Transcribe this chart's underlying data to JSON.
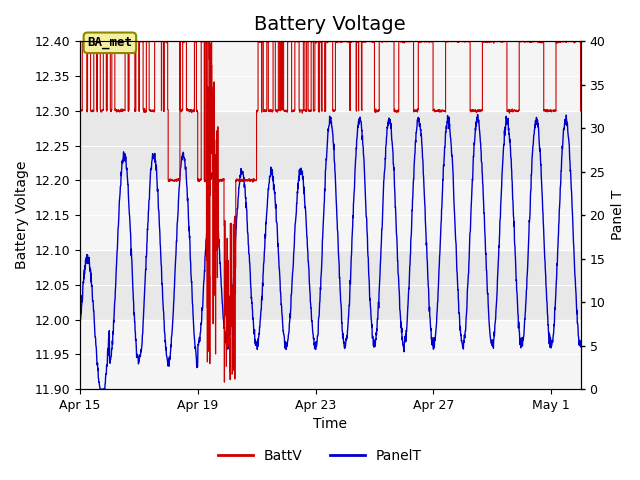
{
  "title": "Battery Voltage",
  "xlabel": "Time",
  "ylabel_left": "Battery Voltage",
  "ylabel_right": "Panel T",
  "ylim_left": [
    11.9,
    12.4
  ],
  "ylim_right": [
    0,
    40
  ],
  "yticks_left": [
    11.9,
    11.95,
    12.0,
    12.05,
    12.1,
    12.15,
    12.2,
    12.25,
    12.3,
    12.35,
    12.4
  ],
  "yticks_right": [
    0,
    5,
    10,
    15,
    20,
    25,
    30,
    35,
    40
  ],
  "total_days": 17,
  "xtick_labels": [
    "Apr 15",
    "Apr 19",
    "Apr 23",
    "Apr 27",
    "May 1"
  ],
  "xtick_positions": [
    0,
    4,
    8,
    12,
    16
  ],
  "plot_bg_color": "#e8e8e8",
  "battv_color": "#cc0000",
  "panelt_color": "#0000cc",
  "legend_battv": "BattV",
  "legend_panelt": "PanelT",
  "annotation_text": "BA_met",
  "title_fontsize": 14,
  "label_fontsize": 10,
  "tick_fontsize": 9
}
